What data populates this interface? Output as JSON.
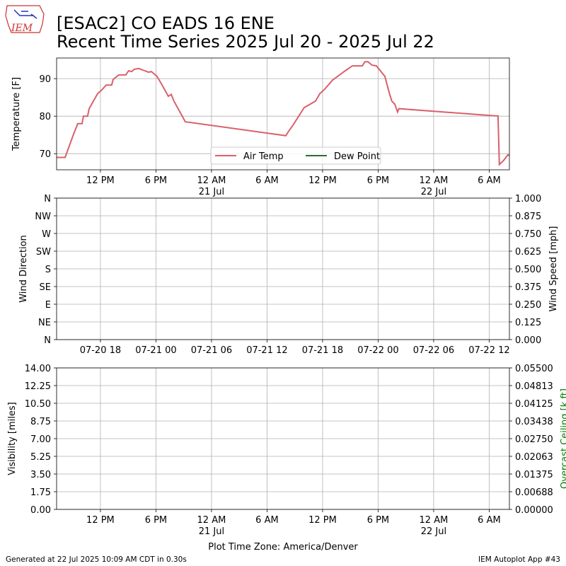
{
  "logo_text": "IEM",
  "footer_left": "Generated at 22 Jul 2025 10:09 AM CDT in 0.30s",
  "footer_right": "IEM Autoplot App #43",
  "chart_data": [
    {
      "type": "line",
      "title": "[ESAC2] CO EADS 16 ENE",
      "subtitle": "Recent Time Series 2025 Jul 20 - 2025 Jul 22",
      "ylabel": "Temperature [F]",
      "grid": true,
      "legend": "lower center",
      "xlim": [
        "2025-07-20 07:16",
        "2025-07-22 08:11"
      ],
      "xticks": [
        {
          "value": "2025-07-20 12:00",
          "label": "12 PM"
        },
        {
          "value": "2025-07-20 18:00",
          "label": "6 PM"
        },
        {
          "value": "2025-07-21 00:00",
          "label": "12 AM\n21 Jul"
        },
        {
          "value": "2025-07-21 06:00",
          "label": "6 AM"
        },
        {
          "value": "2025-07-21 12:00",
          "label": "12 PM"
        },
        {
          "value": "2025-07-21 18:00",
          "label": "6 PM"
        },
        {
          "value": "2025-07-22 00:00",
          "label": "12 AM\n22 Jul"
        },
        {
          "value": "2025-07-22 06:00",
          "label": "6 AM"
        }
      ],
      "ylim": [
        65.7,
        95.5
      ],
      "yticks": [
        70,
        80,
        90
      ],
      "x": [
        "2025-07-20 07:16",
        "2025-07-20 08:11",
        "2025-07-20 09:06",
        "2025-07-20 09:33",
        "2025-07-20 10:01",
        "2025-07-20 10:10",
        "2025-07-20 10:37",
        "2025-07-20 10:47",
        "2025-07-20 11:14",
        "2025-07-20 11:42",
        "2025-07-20 12:09",
        "2025-07-20 12:37",
        "2025-07-20 13:13",
        "2025-07-20 13:23",
        "2025-07-20 13:59",
        "2025-07-20 14:45",
        "2025-07-20 15:03",
        "2025-07-20 15:22",
        "2025-07-20 15:40",
        "2025-07-20 16:08",
        "2025-07-20 16:35",
        "2025-07-20 17:12",
        "2025-07-20 17:30",
        "2025-07-20 18:07",
        "2025-07-20 18:44",
        "2025-07-20 19:20",
        "2025-07-20 19:39",
        "2025-07-20 19:57",
        "2025-07-20 21:10",
        "2025-07-21 08:02",
        "2025-07-21 08:20",
        "2025-07-21 08:47",
        "2025-07-21 10:01",
        "2025-07-21 11:14",
        "2025-07-21 11:42",
        "2025-07-21 12:09",
        "2025-07-21 12:37",
        "2025-07-21 13:04",
        "2025-07-21 13:50",
        "2025-07-21 14:27",
        "2025-07-21 15:13",
        "2025-07-21 16:17",
        "2025-07-21 16:35",
        "2025-07-21 16:54",
        "2025-07-21 17:21",
        "2025-07-21 17:49",
        "2025-07-21 18:44",
        "2025-07-21 19:11",
        "2025-07-21 19:29",
        "2025-07-21 19:48",
        "2025-07-21 20:06",
        "2025-07-21 20:15",
        "2025-07-22 06:39",
        "2025-07-22 06:57",
        "2025-07-22 07:06",
        "2025-07-22 07:34",
        "2025-07-22 08:01",
        "2025-07-22 08:11"
      ],
      "series": [
        {
          "name": "Air Temp",
          "color": "#d9606a",
          "values": [
            69,
            69,
            75.2,
            78,
            78,
            80,
            80,
            82,
            84,
            86,
            87,
            88.3,
            88.3,
            89.8,
            91,
            91,
            92.1,
            91.9,
            92.5,
            92.7,
            92.3,
            91.7,
            91.9,
            90.6,
            88,
            85.3,
            85.8,
            84,
            78.5,
            74.8,
            76,
            77.5,
            82.3,
            84,
            86,
            87,
            88.3,
            89.6,
            91,
            92.1,
            93.4,
            93.4,
            94.5,
            94.5,
            93.6,
            93.4,
            90.6,
            86.4,
            84,
            83.2,
            81.1,
            82,
            80.1,
            80.1,
            67.1,
            68.2,
            69.7,
            69.5
          ]
        },
        {
          "name": "Dew Point",
          "color": "#2e6b35",
          "values": [
            null,
            null,
            null,
            null,
            null,
            null,
            null,
            null,
            null,
            null,
            null,
            null,
            null,
            null,
            null,
            null,
            null,
            null,
            null,
            null,
            null,
            null,
            null,
            null,
            null,
            null,
            null,
            null,
            null,
            null,
            null,
            null,
            null,
            null,
            null,
            null,
            null,
            null,
            null,
            null,
            null,
            null,
            null,
            null,
            null,
            null,
            null,
            null,
            null,
            null,
            null,
            null,
            null,
            null,
            null,
            null,
            null,
            null
          ]
        }
      ]
    },
    {
      "type": "line",
      "ylabel": "Wind Direction",
      "y2label": "Wind Speed [mph]",
      "grid": true,
      "xlim": [
        "2025-07-20 13:16",
        "2025-07-22 14:11"
      ],
      "xticks": [
        {
          "value": "2025-07-20 18:00",
          "label": "07-20 18"
        },
        {
          "value": "2025-07-21 00:00",
          "label": "07-21 00"
        },
        {
          "value": "2025-07-21 06:00",
          "label": "07-21 06"
        },
        {
          "value": "2025-07-21 12:00",
          "label": "07-21 12"
        },
        {
          "value": "2025-07-21 18:00",
          "label": "07-21 18"
        },
        {
          "value": "2025-07-22 00:00",
          "label": "07-22 00"
        },
        {
          "value": "2025-07-22 06:00",
          "label": "07-22 06"
        },
        {
          "value": "2025-07-22 12:00",
          "label": "07-22 12"
        }
      ],
      "ylim": [
        0,
        360
      ],
      "yticks": [
        {
          "value": 0,
          "label": "N"
        },
        {
          "value": 45,
          "label": "NE"
        },
        {
          "value": 90,
          "label": "E"
        },
        {
          "value": 135,
          "label": "SE"
        },
        {
          "value": 180,
          "label": "S"
        },
        {
          "value": 225,
          "label": "SW"
        },
        {
          "value": 270,
          "label": "W"
        },
        {
          "value": 315,
          "label": "NW"
        },
        {
          "value": 360,
          "label": "N"
        }
      ],
      "y2lim": [
        0,
        1
      ],
      "y2ticks": [
        {
          "value": 0,
          "label": "0.000"
        },
        {
          "value": 0.125,
          "label": "0.125"
        },
        {
          "value": 0.25,
          "label": "0.250"
        },
        {
          "value": 0.375,
          "label": "0.375"
        },
        {
          "value": 0.5,
          "label": "0.500"
        },
        {
          "value": 0.625,
          "label": "0.625"
        },
        {
          "value": 0.75,
          "label": "0.750"
        },
        {
          "value": 0.875,
          "label": "0.875"
        },
        {
          "value": 1,
          "label": "1.000"
        }
      ]
    },
    {
      "type": "line",
      "ylabel": "Visibility [miles]",
      "y2label": "Overcast Ceiling [k ft]",
      "y2label_color": "#008000",
      "xlabel": "Plot Time Zone: America/Denver",
      "grid": true,
      "xlim": [
        "2025-07-20 07:16",
        "2025-07-22 08:11"
      ],
      "xticks": [
        {
          "value": "2025-07-20 12:00",
          "label": "12 PM"
        },
        {
          "value": "2025-07-20 18:00",
          "label": "6 PM"
        },
        {
          "value": "2025-07-21 00:00",
          "label": "12 AM\n21 Jul"
        },
        {
          "value": "2025-07-21 06:00",
          "label": "6 AM"
        },
        {
          "value": "2025-07-21 12:00",
          "label": "12 PM"
        },
        {
          "value": "2025-07-21 18:00",
          "label": "6 PM"
        },
        {
          "value": "2025-07-22 00:00",
          "label": "12 AM\n22 Jul"
        },
        {
          "value": "2025-07-22 06:00",
          "label": "6 AM"
        }
      ],
      "ylim": [
        0,
        14
      ],
      "yticks": [
        {
          "value": 0,
          "label": "0.00"
        },
        1.75,
        {
          "value": 3.5,
          "label": "3.50"
        },
        5.25,
        {
          "value": 7,
          "label": "7.00"
        },
        8.75,
        {
          "value": 10.5,
          "label": "10.50"
        },
        12.25,
        {
          "value": 14,
          "label": "14.00"
        }
      ],
      "y2lim": [
        0,
        0.055
      ],
      "y2ticks": [
        {
          "value": 0,
          "label": "0.00000"
        },
        {
          "value": 0.006875,
          "label": "0.00688"
        },
        {
          "value": 0.01375,
          "label": "0.01375"
        },
        {
          "value": 0.020625,
          "label": "0.02063"
        },
        {
          "value": 0.0275,
          "label": "0.02750"
        },
        {
          "value": 0.034375,
          "label": "0.03438"
        },
        {
          "value": 0.04125,
          "label": "0.04125"
        },
        {
          "value": 0.048125,
          "label": "0.04813"
        },
        {
          "value": 0.055,
          "label": "0.05500"
        }
      ]
    }
  ]
}
